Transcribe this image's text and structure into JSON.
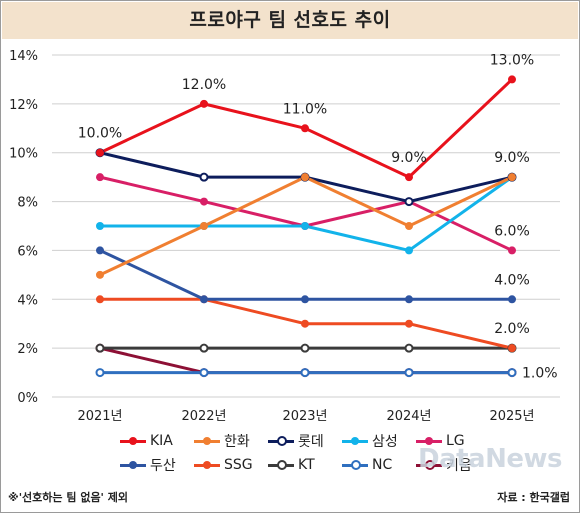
{
  "title": "프로야구 팀 선호도 추이",
  "footnote": "※'선호하는 팀 없음' 제외",
  "source": "자료 : 한국갤럽",
  "watermark": "DataNews",
  "chart_data": {
    "type": "line",
    "title": "프로야구 팀 선호도 추이",
    "categories": [
      "2021년",
      "2022년",
      "2023년",
      "2024년",
      "2025년"
    ],
    "y_ticks": [
      "0%",
      "2%",
      "4%",
      "6%",
      "8%",
      "10%",
      "12%",
      "14%"
    ],
    "ylim": [
      0,
      14
    ],
    "grid": true,
    "legend_position": "bottom",
    "series": [
      {
        "name": "KIA",
        "values": [
          10,
          12,
          11,
          9,
          13
        ],
        "color": "#e8121c",
        "hollow": false,
        "labels": [
          "10.0%",
          "12.0%",
          "11.0%",
          "9.0%",
          "13.0%"
        ]
      },
      {
        "name": "한화",
        "values": [
          5,
          7,
          9,
          7,
          9
        ],
        "color": "#f07f31",
        "hollow": false,
        "labels": []
      },
      {
        "name": "롯데",
        "values": [
          10,
          9,
          9,
          8,
          9
        ],
        "color": "#0d1d5c",
        "hollow": true,
        "labels": [
          "",
          "",
          "",
          "",
          "9.0%"
        ]
      },
      {
        "name": "삼성",
        "values": [
          7,
          7,
          7,
          6,
          9
        ],
        "color": "#12b3ea",
        "hollow": false,
        "labels": []
      },
      {
        "name": "LG",
        "values": [
          9,
          8,
          7,
          8,
          6
        ],
        "color": "#d81f66",
        "hollow": false,
        "labels": [
          "",
          "",
          "",
          "",
          "6.0%"
        ]
      },
      {
        "name": "두산",
        "values": [
          6,
          4,
          4,
          4,
          4
        ],
        "color": "#2e54a1",
        "hollow": false,
        "labels": [
          "",
          "",
          "",
          "",
          "4.0%"
        ]
      },
      {
        "name": "SSG",
        "values": [
          4,
          4,
          3,
          3,
          2
        ],
        "color": "#ee4b22",
        "hollow": false,
        "labels": [
          "",
          "",
          "",
          "",
          "2.0%"
        ]
      },
      {
        "name": "KT",
        "values": [
          2,
          2,
          2,
          2,
          2
        ],
        "color": "#3b3b3b",
        "hollow": true,
        "labels": []
      },
      {
        "name": "NC",
        "values": [
          1,
          1,
          1,
          1,
          1
        ],
        "color": "#2f6fbf",
        "hollow": true,
        "labels": [
          "",
          "",
          "",
          "",
          "1.0%"
        ]
      },
      {
        "name": "키움",
        "values": [
          2,
          1,
          1,
          1,
          1
        ],
        "color": "#8d1035",
        "hollow": true,
        "labels": []
      }
    ]
  }
}
